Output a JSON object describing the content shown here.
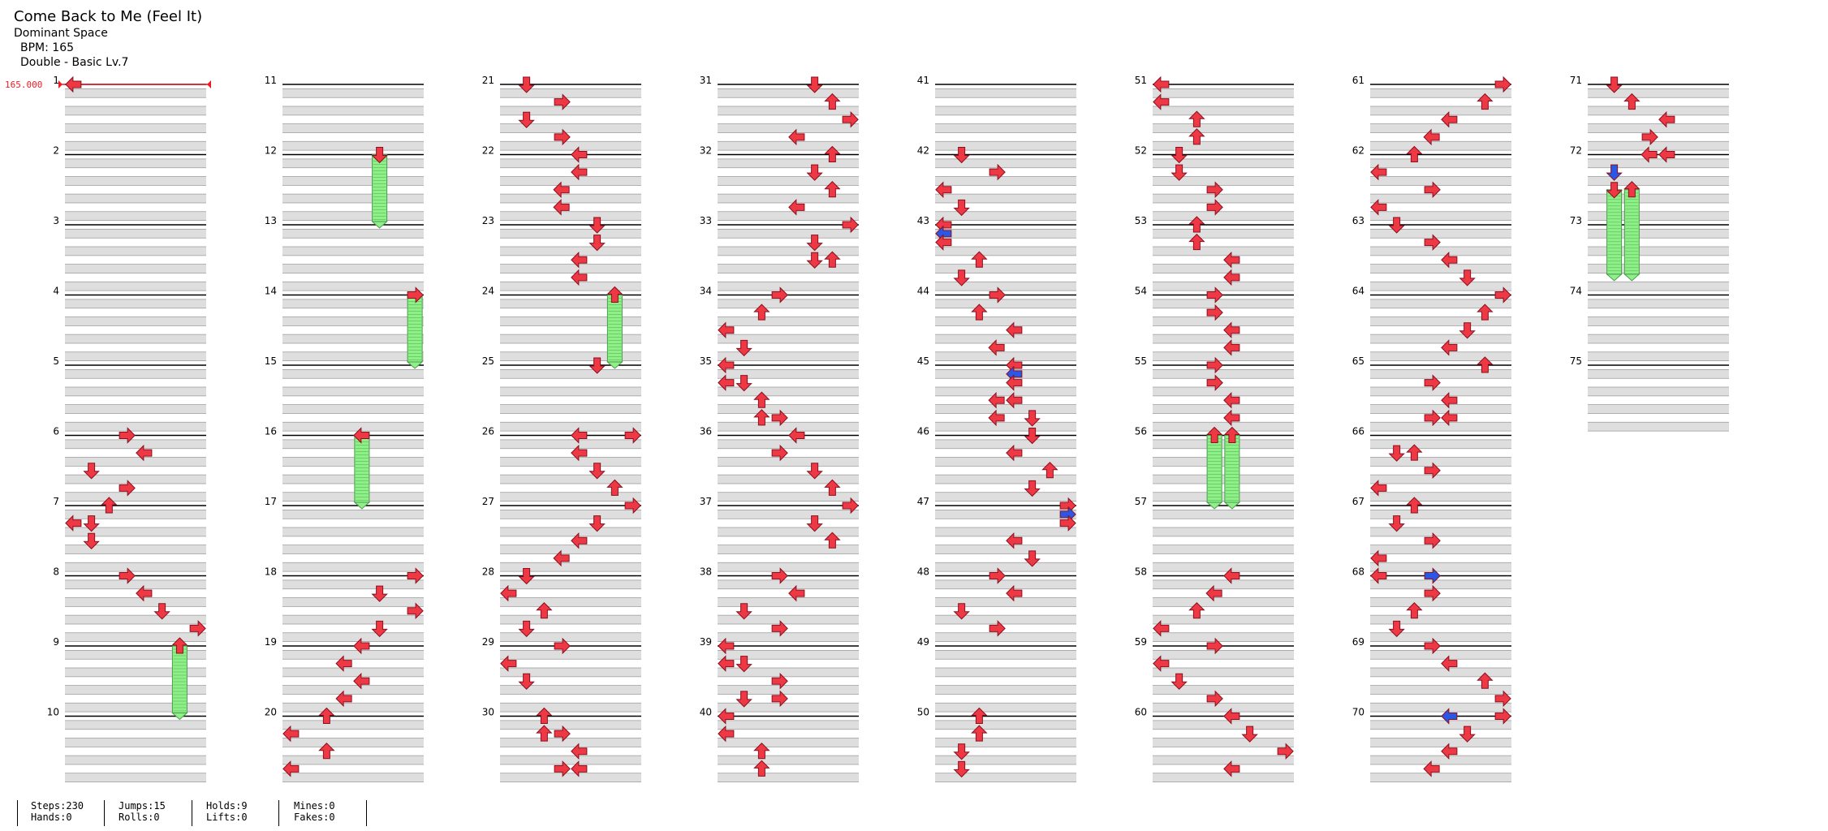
{
  "song": {
    "title": "Come Back to Me (Feel It)",
    "artist": "Dominant Space",
    "bpm_label": "BPM: 165",
    "chart_label": "Double - Basic Lv.7"
  },
  "bpm_marker": "165.000",
  "colors": {
    "arrow_red": "#ee3844",
    "arrow_blue": "#2a57e6",
    "hold_green": "#8ff08a",
    "band_gray": "#dedede",
    "bpm_red": "#ee1c24"
  },
  "measure_numbers": [
    1,
    2,
    3,
    4,
    5,
    6,
    7,
    8,
    9,
    10,
    11,
    12,
    13,
    14,
    15,
    16,
    17,
    18,
    19,
    20,
    21,
    22,
    23,
    24,
    25,
    26,
    27,
    28,
    29,
    30,
    31,
    32,
    33,
    34,
    35,
    36,
    37,
    38,
    39,
    40,
    41,
    42,
    43,
    44,
    45,
    46,
    47,
    48,
    49,
    50,
    51,
    52,
    53,
    54,
    55,
    56,
    57,
    58,
    59,
    60,
    61,
    62,
    63,
    64,
    65,
    66,
    67,
    68,
    69,
    70,
    71,
    72,
    73,
    74,
    75
  ],
  "stats": {
    "steps": "Steps:230",
    "hands": "Hands:0",
    "jumps": "Jumps:15",
    "rolls": "Rolls:0",
    "holds": "Holds:9",
    "lifts": "Lifts:0",
    "mines": "Mines:0",
    "fakes": "Fakes:0"
  },
  "notes": [
    [
      1,
      0,
      0,
      6,
      "L"
    ],
    [
      6,
      0,
      3,
      1,
      "R"
    ],
    [
      6,
      1,
      4,
      1,
      "L"
    ],
    [
      6,
      2,
      1,
      1,
      "D"
    ],
    [
      6,
      3,
      3,
      1,
      "R"
    ],
    [
      7,
      0,
      2,
      1,
      "U"
    ],
    [
      7,
      1,
      1,
      1,
      "D"
    ],
    [
      7,
      1,
      0,
      1,
      "L"
    ],
    [
      7,
      2,
      1,
      1,
      "D"
    ],
    [
      8,
      0,
      3,
      1,
      "R"
    ],
    [
      8,
      1,
      4,
      1,
      "L"
    ],
    [
      8,
      2,
      5,
      1,
      "D"
    ],
    [
      8,
      3,
      7,
      1,
      "R"
    ],
    [
      9,
      0,
      6,
      1,
      "U"
    ],
    [
      12,
      0,
      5,
      1,
      "D"
    ],
    [
      14,
      0,
      7,
      1,
      "R"
    ],
    [
      16,
      0,
      4,
      1,
      "L"
    ],
    [
      18,
      0,
      7,
      1,
      "R"
    ],
    [
      18,
      1,
      5,
      1,
      "D"
    ],
    [
      18,
      2,
      7,
      1,
      "R"
    ],
    [
      18,
      3,
      5,
      1,
      "D"
    ],
    [
      19,
      0,
      4,
      1,
      "L"
    ],
    [
      19,
      1,
      3,
      1,
      "L"
    ],
    [
      19,
      2,
      4,
      1,
      "L"
    ],
    [
      19,
      3,
      3,
      1,
      "L"
    ],
    [
      20,
      0,
      2,
      1,
      "U"
    ],
    [
      20,
      1,
      0,
      1,
      "L"
    ],
    [
      20,
      2,
      2,
      1,
      "U"
    ],
    [
      20,
      3,
      0,
      1,
      "L"
    ],
    [
      21,
      0,
      1,
      1,
      "D"
    ],
    [
      21,
      1,
      3,
      1,
      "R"
    ],
    [
      21,
      2,
      1,
      1,
      "D"
    ],
    [
      21,
      3,
      3,
      1,
      "R"
    ],
    [
      22,
      0,
      4,
      1,
      "L"
    ],
    [
      22,
      1,
      4,
      1,
      "L"
    ],
    [
      22,
      2,
      3,
      1,
      "L"
    ],
    [
      22,
      3,
      3,
      1,
      "L"
    ],
    [
      23,
      0,
      5,
      1,
      "D"
    ],
    [
      23,
      1,
      5,
      1,
      "D"
    ],
    [
      23,
      2,
      4,
      1,
      "L"
    ],
    [
      23,
      3,
      4,
      1,
      "L"
    ],
    [
      24,
      0,
      6,
      1,
      "U"
    ],
    [
      25,
      0,
      5,
      1,
      "D"
    ],
    [
      26,
      0,
      4,
      1,
      "L"
    ],
    [
      26,
      0,
      7,
      1,
      "R"
    ],
    [
      26,
      1,
      4,
      1,
      "L"
    ],
    [
      26,
      2,
      5,
      1,
      "D"
    ],
    [
      26,
      3,
      6,
      1,
      "U"
    ],
    [
      27,
      0,
      7,
      1,
      "R"
    ],
    [
      27,
      1,
      5,
      1,
      "D"
    ],
    [
      27,
      2,
      4,
      1,
      "L"
    ],
    [
      27,
      3,
      3,
      1,
      "L"
    ],
    [
      28,
      0,
      1,
      1,
      "D"
    ],
    [
      28,
      1,
      0,
      1,
      "L"
    ],
    [
      28,
      2,
      2,
      1,
      "U"
    ],
    [
      28,
      3,
      1,
      1,
      "D"
    ],
    [
      29,
      0,
      3,
      1,
      "R"
    ],
    [
      29,
      1,
      0,
      1,
      "L"
    ],
    [
      29,
      2,
      1,
      1,
      "D"
    ],
    [
      30,
      0,
      2,
      1,
      "U"
    ],
    [
      30,
      1,
      2,
      1,
      "U"
    ],
    [
      30,
      1,
      3,
      1,
      "R"
    ],
    [
      30,
      2,
      4,
      1,
      "L"
    ],
    [
      30,
      3,
      3,
      1,
      "R"
    ],
    [
      30,
      3,
      4,
      1,
      "L"
    ],
    [
      31,
      0,
      5,
      1,
      "D"
    ],
    [
      31,
      1,
      6,
      1,
      "U"
    ],
    [
      31,
      2,
      7,
      1,
      "R"
    ],
    [
      31,
      3,
      4,
      1,
      "L"
    ],
    [
      32,
      0,
      6,
      1,
      "U"
    ],
    [
      32,
      1,
      5,
      1,
      "D"
    ],
    [
      32,
      2,
      6,
      1,
      "U"
    ],
    [
      32,
      3,
      4,
      1,
      "L"
    ],
    [
      33,
      0,
      7,
      1,
      "R"
    ],
    [
      33,
      1,
      5,
      1,
      "D"
    ],
    [
      33,
      2,
      5,
      1,
      "D"
    ],
    [
      33,
      2,
      6,
      1,
      "U"
    ],
    [
      34,
      0,
      3,
      1,
      "R"
    ],
    [
      34,
      1,
      2,
      1,
      "U"
    ],
    [
      34,
      2,
      0,
      1,
      "L"
    ],
    [
      34,
      3,
      1,
      1,
      "D"
    ],
    [
      35,
      0,
      0,
      1,
      "L"
    ],
    [
      35,
      1,
      0,
      1,
      "L"
    ],
    [
      35,
      1,
      1,
      1,
      "D"
    ],
    [
      35,
      2,
      2,
      1,
      "U"
    ],
    [
      35,
      3,
      2,
      1,
      "U"
    ],
    [
      35,
      3,
      3,
      1,
      "R"
    ],
    [
      36,
      0,
      4,
      1,
      "L"
    ],
    [
      36,
      1,
      3,
      1,
      "R"
    ],
    [
      36,
      2,
      5,
      1,
      "D"
    ],
    [
      36,
      3,
      6,
      1,
      "U"
    ],
    [
      37,
      0,
      7,
      1,
      "R"
    ],
    [
      37,
      1,
      5,
      1,
      "D"
    ],
    [
      37,
      2,
      6,
      1,
      "U"
    ],
    [
      38,
      0,
      3,
      1,
      "R"
    ],
    [
      38,
      1,
      4,
      1,
      "L"
    ],
    [
      38,
      2,
      1,
      1,
      "D"
    ],
    [
      38,
      3,
      3,
      1,
      "R"
    ],
    [
      39,
      0,
      0,
      1,
      "L"
    ],
    [
      39,
      1,
      0,
      1,
      "L"
    ],
    [
      39,
      1,
      1,
      1,
      "D"
    ],
    [
      39,
      2,
      3,
      1,
      "R"
    ],
    [
      39,
      3,
      1,
      1,
      "D"
    ],
    [
      39,
      3,
      3,
      1,
      "R"
    ],
    [
      40,
      0,
      0,
      1,
      "L"
    ],
    [
      40,
      1,
      0,
      1,
      "L"
    ],
    [
      40,
      2,
      2,
      1,
      "U"
    ],
    [
      40,
      3,
      2,
      1,
      "U"
    ],
    [
      42,
      0,
      1,
      1,
      "D"
    ],
    [
      42,
      1,
      3,
      1,
      "R"
    ],
    [
      42,
      2,
      0,
      1,
      "L"
    ],
    [
      42,
      3,
      1,
      1,
      "D"
    ],
    [
      43,
      0,
      0,
      1,
      "L"
    ],
    [
      43,
      0.5,
      0,
      2,
      "L"
    ],
    [
      43,
      1,
      0,
      1,
      "L"
    ],
    [
      43,
      2,
      2,
      1,
      "U"
    ],
    [
      43,
      3,
      1,
      1,
      "D"
    ],
    [
      44,
      0,
      3,
      1,
      "R"
    ],
    [
      44,
      1,
      2,
      1,
      "U"
    ],
    [
      44,
      2,
      4,
      1,
      "L"
    ],
    [
      44,
      3,
      3,
      1,
      "L"
    ],
    [
      45,
      0,
      4,
      1,
      "L"
    ],
    [
      45,
      0.5,
      4,
      2,
      "L"
    ],
    [
      45,
      1,
      4,
      1,
      "L"
    ],
    [
      45,
      2,
      3,
      1,
      "L"
    ],
    [
      45,
      2,
      4,
      1,
      "L"
    ],
    [
      45,
      3,
      3,
      1,
      "L"
    ],
    [
      45,
      3,
      5,
      1,
      "D"
    ],
    [
      46,
      0,
      5,
      1,
      "D"
    ],
    [
      46,
      1,
      4,
      1,
      "L"
    ],
    [
      46,
      2,
      6,
      1,
      "U"
    ],
    [
      46,
      3,
      5,
      1,
      "D"
    ],
    [
      47,
      0,
      7,
      1,
      "R"
    ],
    [
      47,
      0.5,
      7,
      2,
      "R"
    ],
    [
      47,
      1,
      7,
      1,
      "R"
    ],
    [
      47,
      2,
      4,
      1,
      "L"
    ],
    [
      47,
      3,
      5,
      1,
      "D"
    ],
    [
      48,
      0,
      3,
      1,
      "R"
    ],
    [
      48,
      1,
      4,
      1,
      "L"
    ],
    [
      48,
      2,
      1,
      1,
      "D"
    ],
    [
      48,
      3,
      3,
      1,
      "R"
    ],
    [
      50,
      0,
      2,
      1,
      "U"
    ],
    [
      50,
      1,
      2,
      1,
      "U"
    ],
    [
      50,
      2,
      1,
      1,
      "D"
    ],
    [
      50,
      3,
      1,
      1,
      "D"
    ],
    [
      51,
      0,
      0,
      1,
      "L"
    ],
    [
      51,
      1,
      0,
      1,
      "L"
    ],
    [
      51,
      2,
      2,
      1,
      "U"
    ],
    [
      51,
      3,
      2,
      1,
      "U"
    ],
    [
      52,
      0,
      1,
      1,
      "D"
    ],
    [
      52,
      1,
      1,
      1,
      "D"
    ],
    [
      52,
      2,
      3,
      1,
      "R"
    ],
    [
      52,
      3,
      3,
      1,
      "R"
    ],
    [
      53,
      0,
      2,
      1,
      "U"
    ],
    [
      53,
      1,
      2,
      1,
      "U"
    ],
    [
      53,
      2,
      4,
      1,
      "L"
    ],
    [
      53,
      3,
      4,
      1,
      "L"
    ],
    [
      54,
      0,
      3,
      1,
      "R"
    ],
    [
      54,
      1,
      3,
      1,
      "R"
    ],
    [
      54,
      2,
      4,
      1,
      "L"
    ],
    [
      54,
      3,
      4,
      1,
      "L"
    ],
    [
      55,
      0,
      3,
      1,
      "R"
    ],
    [
      55,
      1,
      3,
      1,
      "R"
    ],
    [
      55,
      2,
      4,
      1,
      "L"
    ],
    [
      55,
      3,
      4,
      1,
      "L"
    ],
    [
      56,
      0,
      3,
      1,
      "U"
    ],
    [
      56,
      0,
      4,
      1,
      "U"
    ],
    [
      58,
      0,
      4,
      1,
      "L"
    ],
    [
      58,
      1,
      3,
      1,
      "L"
    ],
    [
      58,
      2,
      2,
      1,
      "U"
    ],
    [
      58,
      3,
      0,
      1,
      "L"
    ],
    [
      59,
      0,
      3,
      1,
      "R"
    ],
    [
      59,
      1,
      0,
      1,
      "L"
    ],
    [
      59,
      2,
      1,
      1,
      "D"
    ],
    [
      59,
      3,
      3,
      1,
      "R"
    ],
    [
      60,
      0,
      4,
      1,
      "L"
    ],
    [
      60,
      1,
      5,
      1,
      "D"
    ],
    [
      60,
      2,
      7,
      1,
      "R"
    ],
    [
      60,
      3,
      4,
      1,
      "L"
    ],
    [
      61,
      0,
      7,
      1,
      "R"
    ],
    [
      61,
      1,
      6,
      1,
      "U"
    ],
    [
      61,
      2,
      4,
      1,
      "L"
    ],
    [
      61,
      3,
      3,
      1,
      "L"
    ],
    [
      62,
      0,
      2,
      1,
      "U"
    ],
    [
      62,
      1,
      0,
      1,
      "L"
    ],
    [
      62,
      2,
      3,
      1,
      "R"
    ],
    [
      62,
      3,
      0,
      1,
      "L"
    ],
    [
      63,
      0,
      1,
      1,
      "D"
    ],
    [
      63,
      1,
      3,
      1,
      "R"
    ],
    [
      63,
      2,
      4,
      1,
      "L"
    ],
    [
      63,
      3,
      5,
      1,
      "D"
    ],
    [
      64,
      0,
      7,
      1,
      "R"
    ],
    [
      64,
      1,
      6,
      1,
      "U"
    ],
    [
      64,
      2,
      5,
      1,
      "D"
    ],
    [
      64,
      3,
      4,
      1,
      "L"
    ],
    [
      65,
      0,
      6,
      1,
      "U"
    ],
    [
      65,
      1,
      3,
      1,
      "R"
    ],
    [
      65,
      2,
      4,
      1,
      "L"
    ],
    [
      65,
      3,
      3,
      1,
      "R"
    ],
    [
      65,
      3,
      4,
      1,
      "L"
    ],
    [
      66,
      1,
      1,
      1,
      "D"
    ],
    [
      66,
      1,
      2,
      1,
      "U"
    ],
    [
      66,
      2,
      3,
      1,
      "R"
    ],
    [
      66,
      3,
      0,
      1,
      "L"
    ],
    [
      67,
      0,
      2,
      1,
      "U"
    ],
    [
      67,
      1,
      1,
      1,
      "D"
    ],
    [
      67,
      2,
      3,
      1,
      "R"
    ],
    [
      67,
      3,
      0,
      1,
      "L"
    ],
    [
      68,
      0,
      0,
      1,
      "L"
    ],
    [
      68,
      0,
      3,
      2,
      "R"
    ],
    [
      68,
      1,
      3,
      1,
      "R"
    ],
    [
      68,
      2,
      2,
      1,
      "U"
    ],
    [
      68,
      3,
      1,
      1,
      "D"
    ],
    [
      69,
      0,
      3,
      1,
      "R"
    ],
    [
      69,
      1,
      4,
      1,
      "L"
    ],
    [
      69,
      2,
      6,
      1,
      "U"
    ],
    [
      69,
      3,
      7,
      1,
      "R"
    ],
    [
      70,
      0,
      7,
      1,
      "R"
    ],
    [
      70,
      0,
      4,
      2,
      "L"
    ],
    [
      70,
      1,
      5,
      1,
      "D"
    ],
    [
      70,
      2,
      4,
      1,
      "L"
    ],
    [
      70,
      3,
      3,
      1,
      "L"
    ],
    [
      71,
      0,
      1,
      1,
      "D"
    ],
    [
      71,
      1,
      2,
      1,
      "U"
    ],
    [
      71,
      2,
      4,
      1,
      "L"
    ],
    [
      71,
      3,
      3,
      1,
      "R"
    ],
    [
      72,
      0,
      3,
      1,
      "L"
    ],
    [
      72,
      0,
      4,
      1,
      "L"
    ],
    [
      72,
      1,
      1,
      2,
      "D"
    ],
    [
      72,
      2,
      1,
      1,
      "D"
    ],
    [
      72,
      2,
      2,
      1,
      "U"
    ]
  ],
  "holds": [
    [
      9,
      0,
      6,
      1,
      0
    ],
    [
      12,
      0,
      5,
      0,
      4
    ],
    [
      14,
      0,
      7,
      1,
      0
    ],
    [
      16,
      0,
      4,
      1,
      0
    ],
    [
      24,
      0,
      6,
      1,
      0
    ],
    [
      56,
      0,
      3,
      1,
      0
    ],
    [
      56,
      0,
      4,
      1,
      0
    ],
    [
      72,
      2,
      1,
      1,
      1
    ],
    [
      72,
      2,
      2,
      1,
      1
    ]
  ]
}
